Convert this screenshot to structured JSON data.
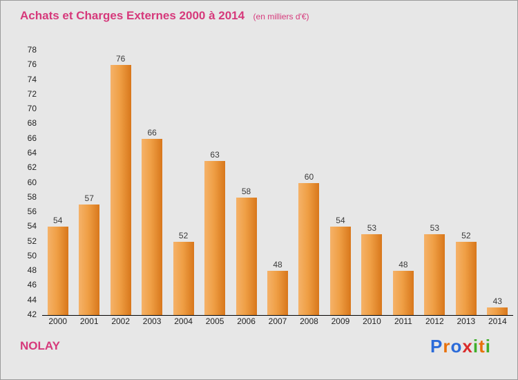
{
  "header": {
    "title": "Achats et Charges Externes 2000 à 2014",
    "subtitle": "(en milliers d'€)"
  },
  "chart_data": {
    "type": "bar",
    "title": "Achats et Charges Externes 2000 à 2014",
    "subtitle": "(en milliers d'€)",
    "categories": [
      "2000",
      "2001",
      "2002",
      "2003",
      "2004",
      "2005",
      "2006",
      "2007",
      "2008",
      "2009",
      "2010",
      "2011",
      "2012",
      "2013",
      "2014"
    ],
    "values": [
      54,
      57,
      76,
      66,
      52,
      63,
      58,
      48,
      60,
      54,
      53,
      48,
      53,
      52,
      43
    ],
    "xlabel": "",
    "ylabel": "",
    "ylim": [
      42,
      78
    ],
    "ytick_step": 2,
    "grid": false,
    "legend": "none",
    "bar_color_light": "#f5b269",
    "bar_color_dark": "#d8771b",
    "value_label_color": "#3a3a3a"
  },
  "footer": {
    "location": "NOLAY",
    "logo_letters": [
      {
        "ch": "P",
        "color": "#2b6bd9"
      },
      {
        "ch": "r",
        "color": "#e8710a"
      },
      {
        "ch": "o",
        "color": "#2b6bd9"
      },
      {
        "ch": "x",
        "color": "#d92b2b"
      },
      {
        "ch": "i",
        "color": "#3fae29"
      },
      {
        "ch": "t",
        "color": "#e8710a"
      },
      {
        "ch": "i",
        "color": "#3fae29"
      }
    ]
  },
  "colors": {
    "accent_pink": "#d6397b",
    "background": "#e7e7e7",
    "axis": "#000000"
  }
}
